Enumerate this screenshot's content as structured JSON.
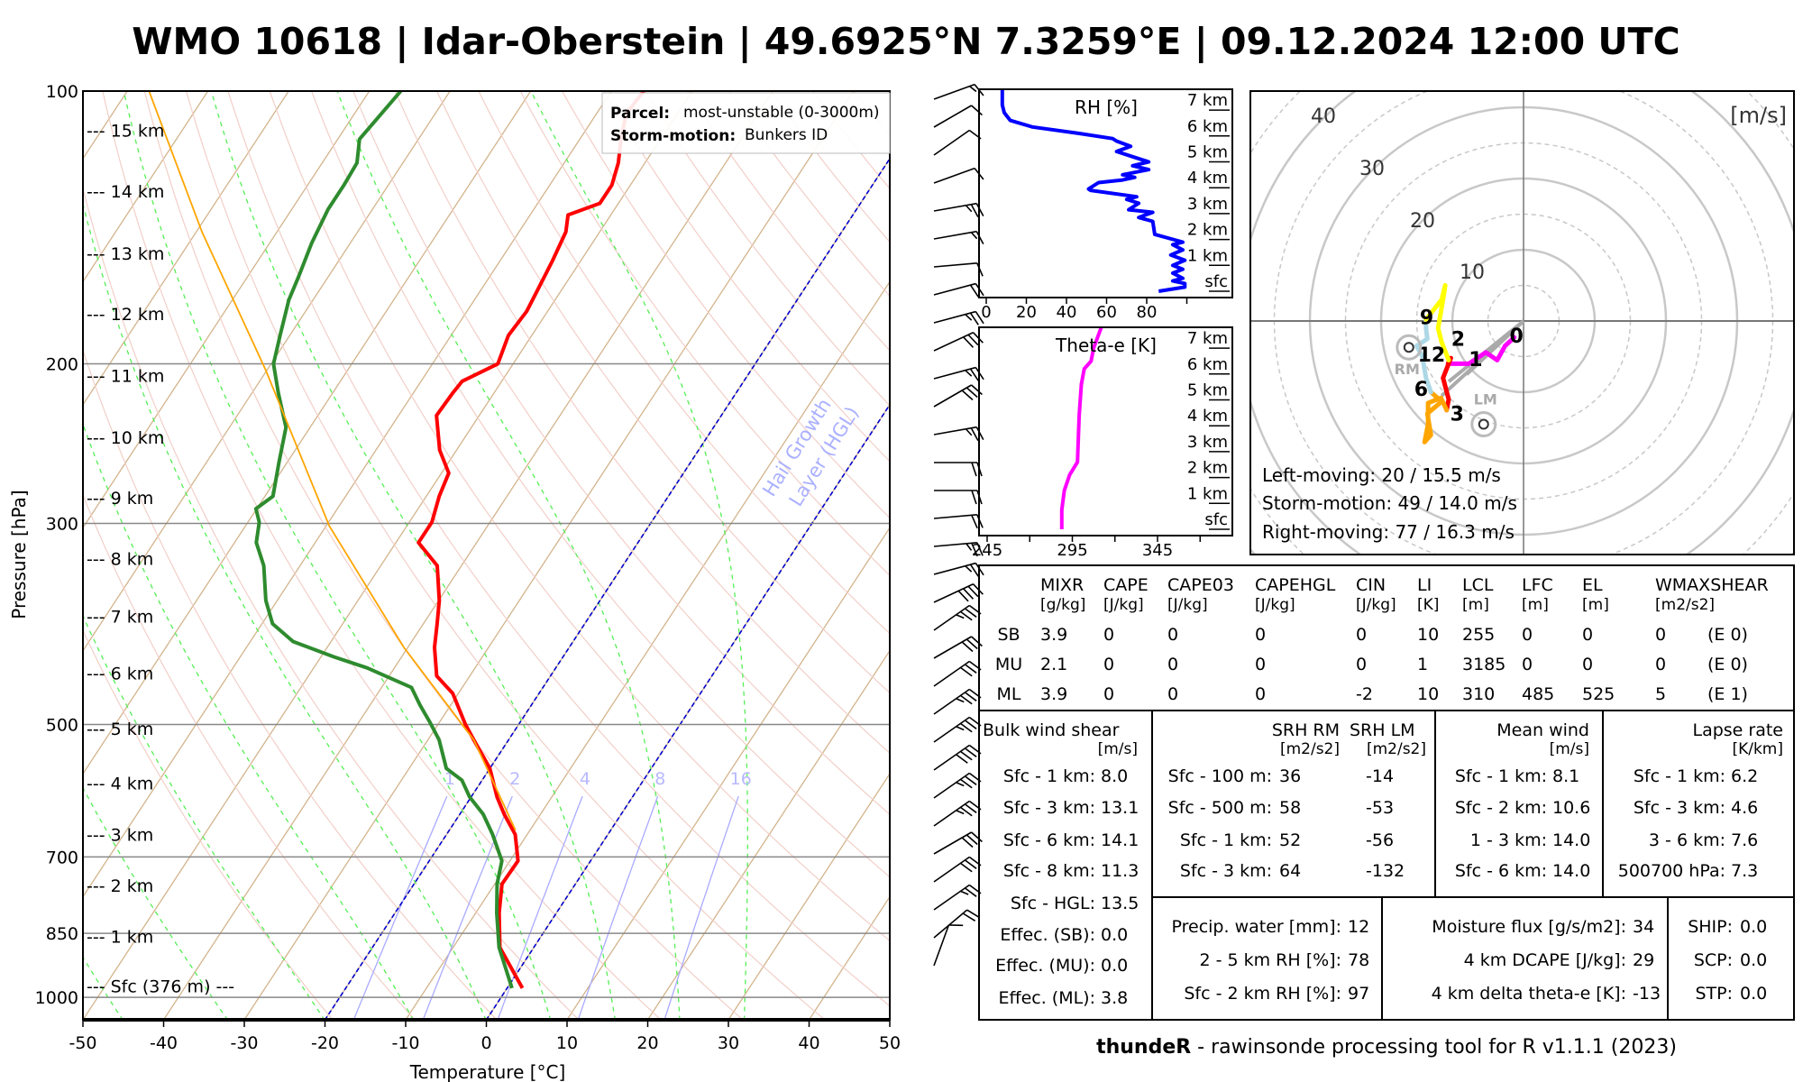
{
  "title": "WMO 10618 | Idar-Oberstein | 49.6925°N 7.3259°E | 09.12.2024 12:00 UTC",
  "footer": {
    "bold": "thundeR",
    "rest": " - rawinsonde processing tool for R v1.1.1 (2023)"
  },
  "colors": {
    "temperature": "#ff0000",
    "dewpoint": "#2e8b2e",
    "parcel": "#ffa500",
    "rh": "#0000ff",
    "theta_e": "#ff00ff",
    "hgl": "#0000cc",
    "mixing_ratio": "#aaaaff"
  },
  "skewt": {
    "xlabel": "Temperature [°C]",
    "ylabel": "Pressure [hPa]",
    "legend": {
      "parcel_label": "Parcel:",
      "parcel_value": "most-unstable (0-3000m)",
      "storm_label": "Storm-motion:",
      "storm_value": "Bunkers ID"
    },
    "hgl_label_1": "Hail Growth",
    "hgl_label_2": "Layer (HGL)",
    "pressure_ticks": [
      "100",
      "200",
      "300",
      "500",
      "700",
      "850",
      "1000"
    ],
    "temp_ticks": [
      "-50",
      "-40",
      "-30",
      "-20",
      "-10",
      "0",
      "10",
      "20",
      "30",
      "40",
      "50"
    ],
    "mixing_ratio_labels": [
      "1",
      "2",
      "4",
      "8",
      "16"
    ],
    "height_labels": [
      {
        "text": "--- 15 km",
        "p": 110.5
      },
      {
        "text": "--- 14 km",
        "p": 129
      },
      {
        "text": "--- 13 km",
        "p": 151
      },
      {
        "text": "--- 12 km",
        "p": 176
      },
      {
        "text": "--- 11 km",
        "p": 206
      },
      {
        "text": "--- 10 km",
        "p": 241
      },
      {
        "text": "--- 9 km",
        "p": 281
      },
      {
        "text": "--- 8 km",
        "p": 328
      },
      {
        "text": "--- 7 km",
        "p": 380
      },
      {
        "text": "--- 6 km",
        "p": 439
      },
      {
        "text": "--- 5 km",
        "p": 505
      },
      {
        "text": "--- 4 km",
        "p": 580
      },
      {
        "text": "--- 3 km",
        "p": 661
      },
      {
        "text": "--- 2 km",
        "p": 753
      },
      {
        "text": "--- 1 km",
        "p": 857
      },
      {
        "text": "--- Sfc (376 m) ---",
        "p": 972
      }
    ]
  },
  "chart_data": [
    {
      "type": "line",
      "title": "Skew-T log-P",
      "xlabel": "Temperature [°C]",
      "ylabel": "Pressure [hPa]",
      "xlim": [
        -50,
        50
      ],
      "ylim": [
        1057,
        100
      ],
      "series": [
        {
          "name": "temperature",
          "p": [
            977,
            881,
            807,
            750,
            707,
            661,
            628,
            601,
            559,
            520,
            500,
            462,
            442,
            411,
            387,
            365,
            334,
            315,
            299,
            280,
            264,
            249,
            228,
            215,
            209,
            200,
            186,
            175,
            165,
            154,
            143,
            137,
            133,
            127,
            120,
            113,
            106,
            100
          ],
          "T": [
            1.9,
            -4.2,
            -7.1,
            -9.1,
            -9.0,
            -11.5,
            -14.5,
            -16.8,
            -20.0,
            -24.3,
            -26.6,
            -30.7,
            -34.1,
            -36.7,
            -38.3,
            -39.9,
            -43.0,
            -47.2,
            -47.2,
            -48.4,
            -49.1,
            -52.1,
            -55.3,
            -55.1,
            -54.9,
            -51.9,
            -52.9,
            -52.6,
            -53.0,
            -53.5,
            -54.2,
            -55.3,
            -52.3,
            -52.3,
            -53.3,
            -54.9,
            -56.3,
            -56.0
          ]
        },
        {
          "name": "dewpoint",
          "p": [
            977,
            881,
            807,
            750,
            707,
            661,
            628,
            601,
            576,
            559,
            520,
            497,
            476,
            455,
            433,
            421,
            405,
            387,
            365,
            334,
            315,
            299,
            289,
            280,
            257,
            235,
            215,
            200,
            186,
            170,
            160,
            147,
            135,
            127,
            120,
            113,
            100
          ],
          "T": [
            0.6,
            -4.3,
            -7.4,
            -9.7,
            -11.0,
            -14.3,
            -17.1,
            -20.2,
            -22.5,
            -25.4,
            -28.6,
            -31.2,
            -33.8,
            -36.3,
            -43.4,
            -48.4,
            -54.7,
            -58.7,
            -61.4,
            -64.5,
            -67.3,
            -68.6,
            -70.1,
            -69.0,
            -71.0,
            -73.0,
            -76.8,
            -79.7,
            -81.2,
            -83.0,
            -83.7,
            -84.8,
            -85.5,
            -85.5,
            -85.7,
            -87.3,
            -86.1
          ]
        },
        {
          "name": "parcel",
          "p": [
            654,
            520,
            411,
            302,
            203,
            143,
            100
          ],
          "T": [
            -11.8,
            -24.3,
            -40.5,
            -59.6,
            -80.2,
            -99.3,
            -117.3
          ]
        }
      ],
      "wind_barbs": [
        {
          "dir": 70,
          "kt": 15
        },
        {
          "dir": 60,
          "kt": 10
        },
        {
          "dir": 55,
          "kt": 10
        },
        {
          "dir": 70,
          "kt": 10
        },
        {
          "dir": 80,
          "kt": 25
        },
        {
          "dir": 80,
          "kt": 15
        },
        {
          "dir": 85,
          "kt": 10
        },
        {
          "dir": 75,
          "kt": 20
        },
        {
          "dir": 75,
          "kt": 25
        },
        {
          "dir": 65,
          "kt": 30
        },
        {
          "dir": 75,
          "kt": 25
        },
        {
          "dir": 60,
          "kt": 30
        },
        {
          "dir": 80,
          "kt": 25
        },
        {
          "dir": 90,
          "kt": 20
        },
        {
          "dir": 90,
          "kt": 20
        },
        {
          "dir": 85,
          "kt": 20
        },
        {
          "dir": 85,
          "kt": 25
        },
        {
          "dir": 75,
          "kt": 25
        },
        {
          "dir": 65,
          "kt": 40
        },
        {
          "dir": 55,
          "kt": 35
        },
        {
          "dir": 60,
          "kt": 30
        },
        {
          "dir": 55,
          "kt": 30
        },
        {
          "dir": 55,
          "kt": 35
        },
        {
          "dir": 55,
          "kt": 35
        },
        {
          "dir": 55,
          "kt": 40
        },
        {
          "dir": 55,
          "kt": 35
        },
        {
          "dir": 55,
          "kt": 35
        },
        {
          "dir": 60,
          "kt": 30
        },
        {
          "dir": 55,
          "kt": 30
        },
        {
          "dir": 55,
          "kt": 25
        },
        {
          "dir": 50,
          "kt": 20
        },
        {
          "dir": 20,
          "kt": 10
        }
      ]
    },
    {
      "type": "line",
      "title": "RH [%]",
      "xlim": [
        0,
        100
      ],
      "ylim": [
        0,
        7.8
      ],
      "x_ticks": [
        "0",
        "20",
        "40",
        "60",
        "80"
      ],
      "y_ticks": [
        "7 km",
        "6 km",
        "5 km",
        "4 km",
        "3 km",
        "2 km",
        "1 km",
        "sfc"
      ],
      "series": [
        {
          "name": "RH",
          "km": [
            0,
            0.16,
            0.3,
            0.4,
            0.5,
            0.7,
            0.85,
            1.0,
            1.2,
            1.4,
            1.6,
            1.8,
            1.9,
            2.2,
            2.7,
            2.85,
            3.05,
            3.15,
            3.4,
            3.55,
            3.65,
            3.9,
            3.95,
            4.2,
            4.3,
            4.4,
            4.5,
            4.7,
            4.85,
            5.0,
            5.2,
            5.4,
            5.6,
            5.8,
            5.9,
            6.1,
            6.35,
            6.6,
            6.9,
            7.2,
            7.8
          ],
          "values": [
            86,
            99,
            99,
            93,
            98,
            93,
            98,
            93,
            99,
            92,
            98,
            93,
            98,
            84,
            83,
            76,
            83,
            71,
            76,
            70,
            75,
            52,
            51,
            56,
            68,
            74,
            68,
            81,
            73,
            81,
            73,
            65,
            72,
            65,
            63,
            46,
            23,
            12,
            9,
            8,
            8
          ]
        }
      ]
    },
    {
      "type": "line",
      "title": "Theta-e [K]",
      "xlim": [
        245,
        385
      ],
      "ylim": [
        0,
        7.8
      ],
      "x_ticks": [
        "245",
        "295",
        "345"
      ],
      "y_ticks": [
        "7 km",
        "6 km",
        "5 km",
        "4 km",
        "3 km",
        "2 km",
        "1 km",
        "sfc"
      ],
      "series": [
        {
          "name": "theta-e",
          "km": [
            0,
            0.75,
            1.5,
            2.1,
            2.6,
            4.4,
            5.6,
            6.2,
            6.5,
            7.0,
            7.8
          ],
          "values": [
            288.8,
            288.8,
            290.3,
            293.4,
            298,
            299,
            300.3,
            302,
            306,
            307.5,
            312
          ]
        }
      ]
    },
    {
      "type": "line",
      "title": "Hodograph",
      "unit_label": "[m/s]",
      "ring_labels": [
        "10",
        "20",
        "30",
        "40"
      ],
      "segments": [
        {
          "name": "0-1 km",
          "color": "#ff00ff",
          "u": [
            -1.3,
            -2.6,
            -3.7,
            -5.3,
            -7.7,
            -10.6
          ],
          "v": [
            -2.3,
            -3.5,
            -5.5,
            -4.4,
            -6.0,
            -6.0
          ]
        },
        {
          "name": "1-3 km",
          "color": "#ff0000",
          "u": [
            -10.6,
            -10.2,
            -11.3,
            -10.5,
            -10.8
          ],
          "v": [
            -6.0,
            -5.2,
            -8.0,
            -11.0,
            -12.5
          ]
        },
        {
          "name": "3-6 km",
          "color": "#ffa500",
          "u": [
            -10.8,
            -11.6,
            -13.4,
            -13.4,
            -13.9,
            -13.0,
            -13.5,
            -11.5,
            -13.0
          ],
          "v": [
            -12.5,
            -10.8,
            -11.5,
            -14.5,
            -17.0,
            -16.0,
            -13.0,
            -11.3,
            -10.0
          ]
        },
        {
          "name": "6-9 km",
          "color": "#add8e6",
          "u": [
            -13.0,
            -13.7,
            -14.2,
            -15.0,
            -13.5,
            -13.7,
            -13.7
          ],
          "v": [
            -10.0,
            -8.0,
            -5.0,
            -3.5,
            -2.5,
            -1.0,
            0.2
          ]
        },
        {
          "name": "9-12 km",
          "color": "#ffff00",
          "u": [
            -13.7,
            -11.5,
            -11.0,
            -11.3,
            -12.0,
            -11.5,
            -10.5
          ],
          "v": [
            0.2,
            3.0,
            5.0,
            3.0,
            -1.0,
            -3.0,
            -5.5
          ]
        }
      ],
      "height_marks": [
        {
          "text": "0",
          "u": -1.0,
          "v": -2.0
        },
        {
          "text": "1",
          "u": -9.5,
          "v": -4.8
        },
        {
          "text": "2",
          "u": -10.2,
          "v": -4.5
        },
        {
          "text": "12",
          "u": -10.9,
          "v": -4.4
        },
        {
          "text": "3",
          "u": -10.6,
          "v": -11.2
        },
        {
          "text": "6",
          "u": -12.6,
          "v": -10.0
        },
        {
          "text": "9",
          "u": -13.6,
          "v": 0.6
        }
      ],
      "rm": {
        "label": "RM",
        "u": -16.1,
        "v": -3.7
      },
      "lm": {
        "label": "LM",
        "u": -5.6,
        "v": -14.5
      },
      "mean_wind_arrows": [
        {
          "u": -10.5,
          "v": -8.5
        },
        {
          "u": -11.5,
          "v": -10.5
        },
        {
          "u": -8.0,
          "v": -7.5
        }
      ],
      "text_lines": [
        "Left-moving: 20 / 15.5 m/s",
        "Storm-motion: 49 / 14.0 m/s",
        "Right-moving: 77 / 16.3 m/s"
      ]
    }
  ],
  "table": {
    "headers": [
      {
        "name": "MIXR",
        "unit": "[g/kg]"
      },
      {
        "name": "CAPE",
        "unit": "[J/kg]"
      },
      {
        "name": "CAPE03",
        "unit": "[J/kg]"
      },
      {
        "name": "CAPEHGL",
        "unit": "[J/kg]"
      },
      {
        "name": "CIN",
        "unit": "[J/kg]"
      },
      {
        "name": "LI",
        "unit": "[K]"
      },
      {
        "name": "LCL",
        "unit": "[m]"
      },
      {
        "name": "LFC",
        "unit": "[m]"
      },
      {
        "name": "EL",
        "unit": "[m]"
      },
      {
        "name": "WMAXSHEAR",
        "unit": "[m2/s2]"
      }
    ],
    "rows": [
      {
        "label": "SB",
        "values": [
          "3.9",
          "0",
          "0",
          "0",
          "0",
          "10",
          "255",
          "0",
          "0",
          "0",
          "(E 0)"
        ]
      },
      {
        "label": "MU",
        "values": [
          "2.1",
          "0",
          "0",
          "0",
          "0",
          "1",
          "3185",
          "0",
          "0",
          "0",
          "(E 0)"
        ]
      },
      {
        "label": "ML",
        "values": [
          "3.9",
          "0",
          "0",
          "0",
          "-2",
          "10",
          "310",
          "485",
          "525",
          "5",
          "(E 1)"
        ]
      }
    ],
    "bulk_shear": {
      "title": "Bulk wind shear",
      "unit": "[m/s]",
      "rows": [
        {
          "label": "Sfc - 1 km:",
          "value": "8.0"
        },
        {
          "label": "Sfc - 3 km:",
          "value": "13.1"
        },
        {
          "label": "Sfc - 6 km:",
          "value": "14.1"
        },
        {
          "label": "Sfc - 8 km:",
          "value": "11.3"
        },
        {
          "label": "Sfc - HGL:",
          "value": "13.5"
        },
        {
          "label": "Effec. (SB):",
          "value": "0.0"
        },
        {
          "label": "Effec. (MU):",
          "value": "0.0"
        },
        {
          "label": "Effec. (ML):",
          "value": "3.8"
        }
      ]
    },
    "srh": {
      "rm_title": "SRH RM",
      "lm_title": "SRH LM",
      "rm_unit": "[m2/s2]",
      "lm_unit": "[m2/s2]",
      "rows": [
        {
          "label": "Sfc - 100 m:",
          "rm": "36",
          "lm": "-14"
        },
        {
          "label": "Sfc - 500 m:",
          "rm": "58",
          "lm": "-53"
        },
        {
          "label": "Sfc - 1 km:",
          "rm": "52",
          "lm": "-56"
        },
        {
          "label": "Sfc - 3 km:",
          "rm": "64",
          "lm": "-132"
        }
      ]
    },
    "mean_wind": {
      "title": "Mean wind",
      "unit": "[m/s]",
      "rows": [
        {
          "label": "Sfc - 1 km:",
          "value": "8.1"
        },
        {
          "label": "Sfc - 2 km:",
          "value": "10.6"
        },
        {
          "label": "1 - 3 km:",
          "value": "14.0"
        },
        {
          "label": "Sfc - 6 km:",
          "value": "14.0"
        }
      ]
    },
    "lapse_rate": {
      "title": "Lapse rate",
      "unit": "[K/km]",
      "rows": [
        {
          "label": "Sfc - 1 km:",
          "value": "6.2"
        },
        {
          "label": "Sfc - 3 km:",
          "value": "4.6"
        },
        {
          "label": "3 - 6 km:",
          "value": "7.6"
        },
        {
          "label": "500700 hPa:",
          "value": "7.3"
        }
      ]
    },
    "moisture": {
      "rows": [
        {
          "label": "Precip. water [mm]:",
          "value": "12"
        },
        {
          "label": "2 - 5 km RH [%]:",
          "value": "78"
        },
        {
          "label": "Sfc - 2 km RH [%]:",
          "value": "97"
        }
      ]
    },
    "flux": {
      "rows": [
        {
          "label": "Moisture flux [g/s/m2]:",
          "value": "34"
        },
        {
          "label": "4 km DCAPE [J/kg]:",
          "value": "29"
        },
        {
          "label": "4 km delta theta-e [K]:",
          "value": "-13"
        }
      ]
    },
    "indices": {
      "rows": [
        {
          "label": "SHIP:",
          "value": "0.0"
        },
        {
          "label": "SCP:",
          "value": "0.0"
        },
        {
          "label": "STP:",
          "value": "0.0"
        }
      ]
    }
  }
}
